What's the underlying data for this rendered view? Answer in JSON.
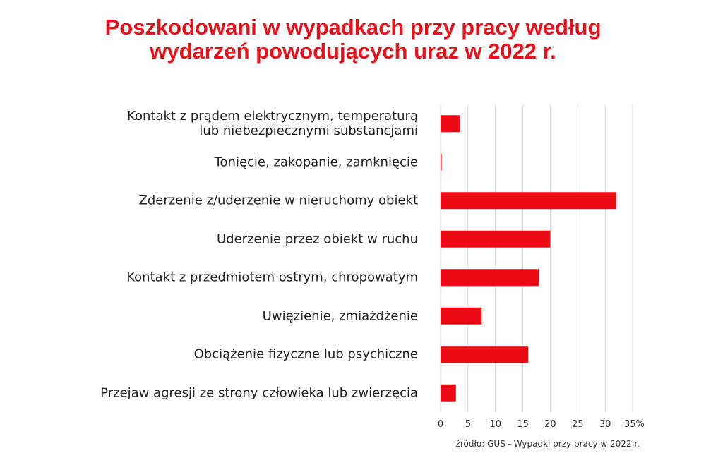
{
  "chart_data": {
    "type": "bar",
    "orientation": "horizontal",
    "title": "Poszkodowani w wypadkach przy pracy według wydarzeń powodujących uraz w 2022 r.",
    "categories": [
      "Kontakt z prądem elektrycznym, temperaturą\nlub niebezpiecznymi substancjami",
      "Tonięcie, zakopanie, zamknięcie",
      "Zderzenie z/uderzenie w nieruchomy obiekt",
      "Uderzenie przez obiekt w ruchu",
      "Kontakt z przedmiotem ostrym, chropowatym",
      "Uwięzienie, zmiażdżenie",
      "Obciążenie fizyczne lub psychiczne",
      "Przejaw agresji ze strony człowieka lub zwierzęcia"
    ],
    "values": [
      3.6,
      0.2,
      32,
      20,
      17.9,
      7.5,
      16,
      2.8
    ],
    "color": "#ec0c16",
    "xlim": [
      0,
      35
    ],
    "xticks": [
      0,
      5,
      10,
      15,
      20,
      25,
      30,
      {
        "value": 35,
        "label": "35%"
      }
    ],
    "grid": true,
    "source": "źródło: GUS - Wypadki przy pracy w 2022 r."
  }
}
